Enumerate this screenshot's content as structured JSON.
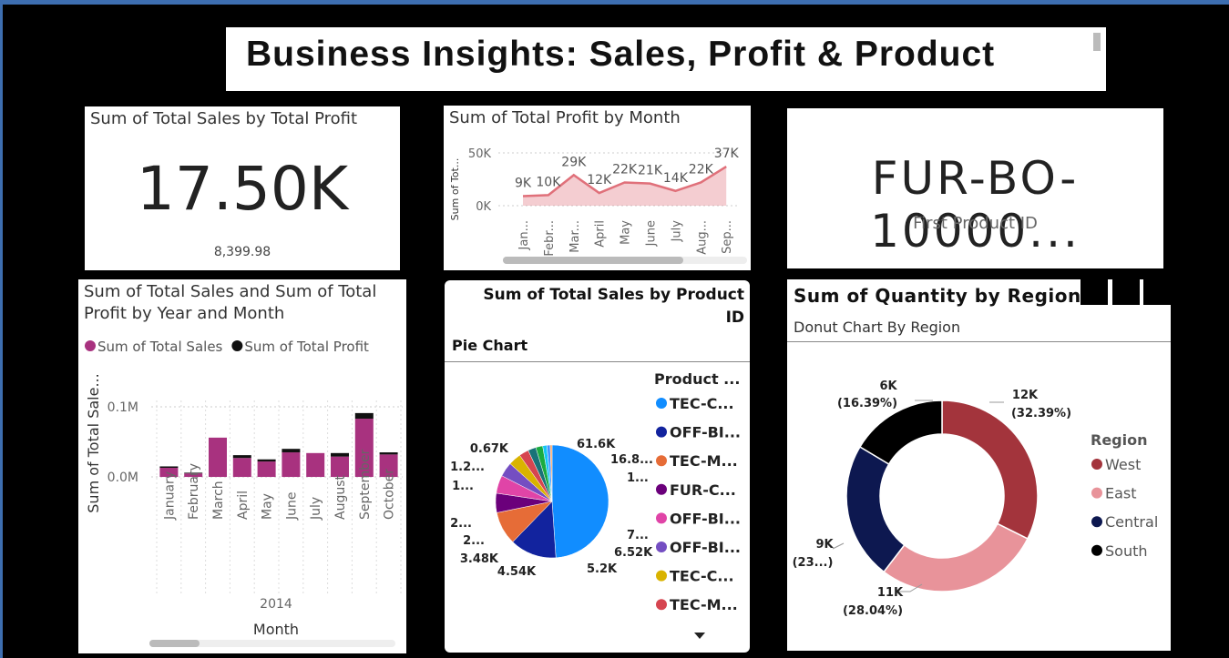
{
  "header": {
    "title": "Business Insights: Sales, Profit & Product"
  },
  "cards": [
    {
      "title": "Sum of Total Sales by Total Profit",
      "value": "17.50K",
      "note": "8,399.98"
    },
    {
      "value": "FUR-BO-10000...",
      "label": "First Product ID"
    }
  ],
  "chart_data": [
    {
      "type": "line",
      "title": "Sum of Total Profit by Month",
      "y_label": "Sum of Tot...",
      "categories": [
        "Jan...",
        "Febr...",
        "Mar...",
        "April",
        "May",
        "June",
        "July",
        "Aug...",
        "Sep..."
      ],
      "values": [
        9000,
        10000,
        29000,
        12000,
        22000,
        21000,
        14000,
        22000,
        37000
      ],
      "value_labels": [
        "9K",
        "10K",
        "29K",
        "12K",
        "22K",
        "21K",
        "14K",
        "22K",
        "37K"
      ],
      "color": "#e0707a",
      "ylim": [
        0,
        50000
      ],
      "yticks": [
        {
          "value": 0,
          "label": "0K"
        },
        {
          "value": 50000,
          "label": "50K"
        }
      ]
    },
    {
      "type": "stacked_bar",
      "title": "Sum of Total Sales and Sum of Total Profit by Year and Month",
      "y_label": "Sum of Total Sale...",
      "x_label": "Month",
      "year_label": "2014",
      "categories": [
        "January",
        "February",
        "March",
        "April",
        "May",
        "June",
        "July",
        "August",
        "September",
        "October"
      ],
      "series": [
        {
          "name": "Sum of Total Sales",
          "color": "#a8327f",
          "values": [
            13000,
            5000,
            56000,
            27000,
            22000,
            35000,
            34000,
            29000,
            83000,
            32000
          ]
        },
        {
          "name": "Sum of Total Profit",
          "color": "#111111",
          "values": [
            2000,
            1000,
            0,
            4000,
            3000,
            5000,
            0,
            5000,
            8000,
            3000
          ]
        }
      ],
      "ylim": [
        -8000,
        109000
      ],
      "yticks": [
        {
          "value": 0,
          "label": "0.0M"
        },
        {
          "value": 100000,
          "label": "0.1M"
        }
      ]
    },
    {
      "type": "pie",
      "title": "Sum of Total Sales by Product ID",
      "subtitle": "Pie Chart",
      "values": [
        61600,
        16800,
        12000,
        7000,
        6520,
        5200,
        4540,
        3480,
        2900,
        2500,
        1500,
        1200,
        670
      ],
      "value_labels": [
        "61.6K",
        "16.8...",
        "1...",
        "7...",
        "6.52K",
        "5.2K",
        "4.54K",
        "3.48K",
        "2...",
        "2...",
        "1...",
        "1.2...",
        "0.67K"
      ],
      "colors": [
        "#118dff",
        "#12239e",
        "#e66c37",
        "#6b007b",
        "#e044a7",
        "#744ec2",
        "#d9b300",
        "#d64550",
        "#197278",
        "#1aab40",
        "#15c6f4",
        "#4092ff",
        "#ffa058"
      ],
      "legend": {
        "title": "Product ...",
        "items": [
          {
            "name": "TEC-C...",
            "color": "#118dff"
          },
          {
            "name": "OFF-BI...",
            "color": "#12239e"
          },
          {
            "name": "TEC-M...",
            "color": "#e66c37"
          },
          {
            "name": "FUR-C...",
            "color": "#6b007b"
          },
          {
            "name": "OFF-BI...",
            "color": "#e044a7"
          },
          {
            "name": "OFF-BI...",
            "color": "#744ec2"
          },
          {
            "name": "TEC-C...",
            "color": "#d9b300"
          },
          {
            "name": "TEC-M...",
            "color": "#d64550"
          }
        ]
      }
    },
    {
      "type": "donut",
      "title": "Sum of Quantity by Region",
      "subtitle": "Donut Chart By Region",
      "legend_title": "Region",
      "categories": [
        "West",
        "East",
        "Central",
        "South"
      ],
      "values": [
        12300,
        10650,
        8810,
        6230
      ],
      "value_labels": [
        "12K",
        "11K",
        "9K",
        "6K"
      ],
      "percent_labels": [
        "(32.39%)",
        "(28.04%)",
        "(23...)",
        "(16.39%)"
      ],
      "colors": [
        "#a3343c",
        "#e8939a",
        "#0d1850",
        "#000000"
      ]
    }
  ]
}
